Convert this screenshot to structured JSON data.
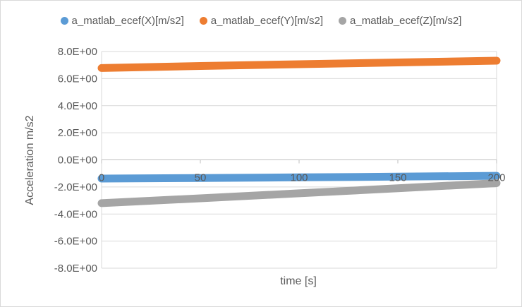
{
  "chart_data": {
    "type": "line",
    "title": "",
    "xlabel": "time [s]",
    "ylabel": "Acceleration m/s2",
    "xlim": [
      0,
      200
    ],
    "ylim": [
      -8,
      8
    ],
    "x_ticks": [
      0,
      50,
      100,
      150,
      200
    ],
    "y_ticks": [
      8,
      6,
      4,
      2,
      0,
      -2,
      -4,
      -6,
      -8
    ],
    "x_tick_labels": [
      "0",
      "50",
      "100",
      "150",
      "200"
    ],
    "y_tick_labels": [
      "8.0E+00",
      "6.0E+00",
      "4.0E+00",
      "2.0E+00",
      "0.0E+00",
      "-2.0E+00",
      "-4.0E+00",
      "-6.0E+00",
      "-8.0E+00"
    ],
    "grid": "horizontal",
    "legend_position": "top",
    "series": [
      {
        "name": "a_matlab_ecef(X)[m/s2]",
        "color": "#5b9bd5",
        "x": [
          0,
          50,
          100,
          150,
          200
        ],
        "y": [
          -1.38,
          -1.34,
          -1.29,
          -1.24,
          -1.18
        ]
      },
      {
        "name": "a_matlab_ecef(Y)[m/s2]",
        "color": "#ed7d31",
        "x": [
          0,
          50,
          100,
          150,
          200
        ],
        "y": [
          6.78,
          6.93,
          7.06,
          7.19,
          7.32
        ]
      },
      {
        "name": "a_matlab_ecef(Z)[m/s2]",
        "color": "#a5a5a5",
        "x": [
          0,
          50,
          100,
          150,
          200
        ],
        "y": [
          -3.2,
          -2.84,
          -2.47,
          -2.1,
          -1.72
        ]
      }
    ]
  }
}
